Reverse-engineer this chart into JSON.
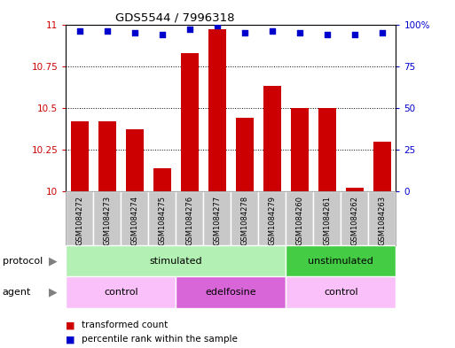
{
  "title": "GDS5544 / 7996318",
  "samples": [
    "GSM1084272",
    "GSM1084273",
    "GSM1084274",
    "GSM1084275",
    "GSM1084276",
    "GSM1084277",
    "GSM1084278",
    "GSM1084279",
    "GSM1084260",
    "GSM1084261",
    "GSM1084262",
    "GSM1084263"
  ],
  "bar_values": [
    10.42,
    10.42,
    10.37,
    10.14,
    10.83,
    10.97,
    10.44,
    10.63,
    10.5,
    10.5,
    10.02,
    10.3
  ],
  "percentile_values": [
    96,
    96,
    95,
    94,
    97,
    99,
    95,
    96,
    95,
    94,
    94,
    95
  ],
  "bar_color": "#cc0000",
  "percentile_color": "#0000cc",
  "ylim_left": [
    10,
    11
  ],
  "ylim_right": [
    0,
    100
  ],
  "yticks_left": [
    10,
    10.25,
    10.5,
    10.75,
    11
  ],
  "yticks_right": [
    0,
    25,
    50,
    75,
    100
  ],
  "ytick_labels_left": [
    "10",
    "10.25",
    "10.5",
    "10.75",
    "11"
  ],
  "ytick_labels_right": [
    "0",
    "25",
    "50",
    "75",
    "100%"
  ],
  "protocol_labels": [
    {
      "label": "stimulated",
      "start": 0,
      "end": 8,
      "color": "#b3f0b3"
    },
    {
      "label": "unstimulated",
      "start": 8,
      "end": 12,
      "color": "#44cc44"
    }
  ],
  "agent_labels": [
    {
      "label": "control",
      "start": 0,
      "end": 4,
      "color": "#f9c0f9"
    },
    {
      "label": "edelfosine",
      "start": 4,
      "end": 8,
      "color": "#d966d9"
    },
    {
      "label": "control",
      "start": 8,
      "end": 12,
      "color": "#f9c0f9"
    }
  ],
  "legend_bar_label": "transformed count",
  "legend_dot_label": "percentile rank within the sample",
  "background_color": "#ffffff",
  "tick_area_color": "#c8c8c8",
  "grid_line_color": "#000000",
  "arrow_color": "#808080"
}
